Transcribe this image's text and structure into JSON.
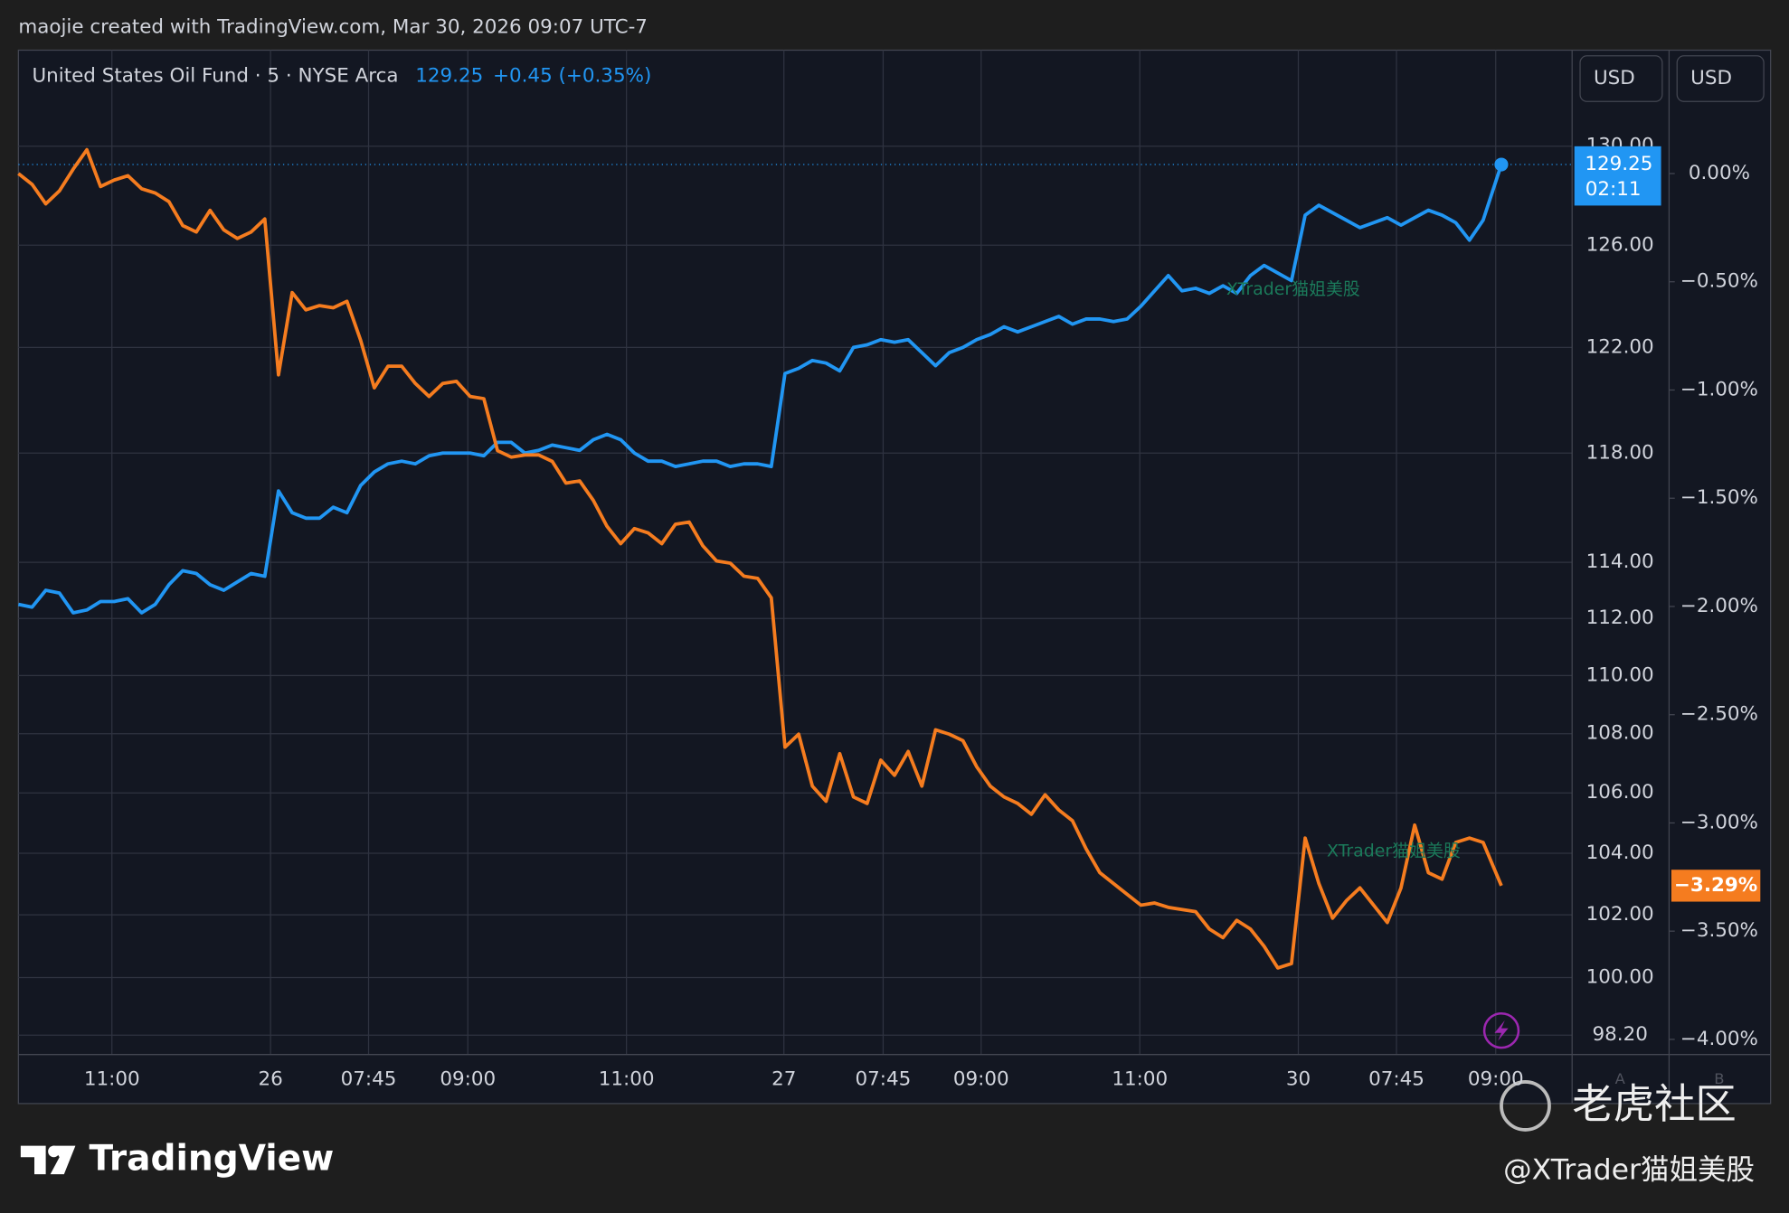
{
  "header": {
    "attribution": "maojie created with TradingView.com, Mar 30, 2026 09:07 UTC-7"
  },
  "legend": {
    "symbol": "United States Oil Fund · 5 · NYSE Arca",
    "price": "129.25",
    "change": "+0.45 (+0.35%)"
  },
  "currency_buttons": [
    "USD",
    "USD"
  ],
  "axis_letters": [
    "A",
    "B"
  ],
  "price_badge": {
    "price": "129.25",
    "countdown": "02:11"
  },
  "watermarks": [
    "XTrader猫姐美股",
    "XTrader猫姐美股"
  ],
  "footer": {
    "brand": "TradingView",
    "community": "老虎社区",
    "handle": "@XTrader猫姐美股"
  },
  "chart_data": {
    "type": "line",
    "grid": true,
    "ylog": true,
    "xlim": [
      0,
      113.5
    ],
    "ylim": [
      97.6,
      134
    ],
    "y2lim": [
      -4.07,
      0.57
    ],
    "xticks": [
      {
        "value": 6.83,
        "label": "11:00"
      },
      {
        "value": 18.42,
        "label": "26"
      },
      {
        "value": 25.58,
        "label": "07:45"
      },
      {
        "value": 32.83,
        "label": "09:00"
      },
      {
        "value": 44.42,
        "label": "11:00"
      },
      {
        "value": 55.92,
        "label": "27"
      },
      {
        "value": 63.17,
        "label": "07:45"
      },
      {
        "value": 70.33,
        "label": "09:00"
      },
      {
        "value": 81.92,
        "label": "11:00"
      },
      {
        "value": 93.5,
        "label": "30"
      },
      {
        "value": 100.67,
        "label": "07:45"
      },
      {
        "value": 107.92,
        "label": "09:00"
      }
    ],
    "yticks": [
      {
        "value": 130,
        "label": "130.00"
      },
      {
        "value": 126,
        "label": "126.00"
      },
      {
        "value": 122,
        "label": "122.00"
      },
      {
        "value": 118,
        "label": "118.00"
      },
      {
        "value": 114,
        "label": "114.00"
      },
      {
        "value": 112,
        "label": "112.00"
      },
      {
        "value": 110,
        "label": "110.00"
      },
      {
        "value": 108,
        "label": "108.00"
      },
      {
        "value": 106,
        "label": "106.00"
      },
      {
        "value": 104,
        "label": "104.00"
      },
      {
        "value": 102,
        "label": "102.00"
      },
      {
        "value": 100,
        "label": "100.00"
      },
      {
        "value": 98.2,
        "label": "98.20"
      }
    ],
    "y2ticks": [
      {
        "value": 0,
        "label": "0.00%"
      },
      {
        "value": -0.5,
        "label": "−0.50%"
      },
      {
        "value": -1,
        "label": "−1.00%"
      },
      {
        "value": -1.5,
        "label": "−1.50%"
      },
      {
        "value": -2,
        "label": "−2.00%"
      },
      {
        "value": -2.5,
        "label": "−2.50%"
      },
      {
        "value": -3,
        "label": "−3.00%"
      },
      {
        "value": -3.5,
        "label": "−3.50%"
      },
      {
        "value": -4,
        "label": "−4.00%"
      }
    ],
    "x": [
      0,
      1,
      2,
      3,
      4,
      5,
      6,
      7,
      8,
      9,
      10,
      11,
      12,
      13,
      14,
      15,
      16,
      17,
      18,
      19,
      20,
      21,
      22,
      23,
      24,
      25,
      26,
      27,
      28,
      29,
      30,
      31,
      32,
      33,
      34,
      35,
      36,
      37,
      38,
      39,
      40,
      41,
      42,
      43,
      44,
      45,
      46,
      47,
      48,
      49,
      50,
      51,
      52,
      53,
      54,
      55,
      56,
      57,
      58,
      59,
      60,
      61,
      62,
      63,
      64,
      65,
      66,
      67,
      68,
      69,
      70,
      71,
      72,
      73,
      74,
      75,
      76,
      77,
      78,
      79,
      80,
      81,
      82,
      83,
      84,
      85,
      86,
      87,
      88,
      89,
      90,
      91,
      92,
      93,
      94,
      95,
      96,
      97,
      98,
      99,
      100,
      101,
      102,
      103,
      104,
      105,
      106,
      107,
      108.33
    ],
    "series": [
      {
        "name": "United States Oil Fund",
        "color": "#2196f3",
        "values": [
          112.5,
          112.4,
          113.0,
          112.9,
          112.2,
          112.3,
          112.6,
          112.6,
          112.7,
          112.2,
          112.5,
          113.2,
          113.7,
          113.6,
          113.2,
          113.0,
          113.3,
          113.6,
          113.5,
          116.6,
          115.8,
          115.6,
          115.6,
          116.0,
          115.8,
          116.8,
          117.3,
          117.6,
          117.7,
          117.6,
          117.9,
          118.0,
          118.0,
          118.0,
          117.9,
          118.4,
          118.4,
          118.0,
          118.1,
          118.3,
          118.2,
          118.1,
          118.5,
          118.7,
          118.5,
          118.0,
          117.7,
          117.7,
          117.5,
          117.6,
          117.7,
          117.7,
          117.5,
          117.6,
          117.6,
          117.5,
          121.0,
          121.2,
          121.5,
          121.4,
          121.1,
          122.0,
          122.1,
          122.3,
          122.2,
          122.3,
          121.8,
          121.3,
          121.8,
          122.0,
          122.3,
          122.5,
          122.8,
          122.6,
          122.8,
          123.0,
          123.2,
          122.9,
          123.1,
          123.1,
          123.0,
          123.1,
          123.6,
          124.2,
          124.8,
          124.2,
          124.3,
          124.1,
          124.4,
          124.1,
          124.8,
          125.2,
          124.9,
          124.6,
          127.2,
          127.6,
          127.3,
          127.0,
          126.7,
          126.9,
          127.1,
          126.8,
          127.1,
          127.4,
          127.2,
          126.9,
          126.2,
          127.0,
          129.25
        ]
      },
      {
        "color": "#f57c1f",
        "axis": "y2",
        "last_label": "−3.29%",
        "values": [
          0.0,
          -0.05,
          -0.14,
          -0.08,
          0.02,
          0.11,
          -0.06,
          -0.03,
          -0.01,
          -0.07,
          -0.09,
          -0.13,
          -0.24,
          -0.27,
          -0.17,
          -0.26,
          -0.3,
          -0.27,
          -0.21,
          -0.93,
          -0.55,
          -0.63,
          -0.61,
          -0.62,
          -0.59,
          -0.77,
          -0.99,
          -0.89,
          -0.89,
          -0.97,
          -1.03,
          -0.97,
          -0.96,
          -1.03,
          -1.04,
          -1.28,
          -1.31,
          -1.3,
          -1.3,
          -1.33,
          -1.43,
          -1.42,
          -1.51,
          -1.63,
          -1.71,
          -1.64,
          -1.66,
          -1.71,
          -1.62,
          -1.61,
          -1.72,
          -1.79,
          -1.8,
          -1.86,
          -1.87,
          -1.96,
          -2.65,
          -2.59,
          -2.83,
          -2.9,
          -2.68,
          -2.88,
          -2.91,
          -2.71,
          -2.78,
          -2.67,
          -2.83,
          -2.57,
          -2.59,
          -2.62,
          -2.74,
          -2.83,
          -2.88,
          -2.91,
          -2.96,
          -2.87,
          -2.94,
          -2.99,
          -3.12,
          -3.23,
          -3.28,
          -3.33,
          -3.38,
          -3.37,
          -3.39,
          -3.4,
          -3.41,
          -3.49,
          -3.53,
          -3.45,
          -3.49,
          -3.57,
          -3.67,
          -3.65,
          -3.07,
          -3.28,
          -3.44,
          -3.36,
          -3.3,
          -3.38,
          -3.46,
          -3.3,
          -3.01,
          -3.23,
          -3.26,
          -3.09,
          -3.07,
          -3.09,
          -3.29
        ]
      }
    ]
  }
}
